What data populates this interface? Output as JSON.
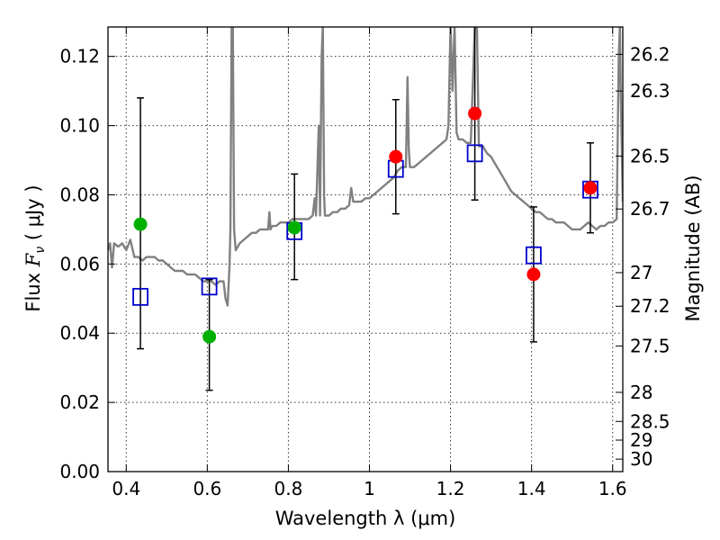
{
  "chart_data": {
    "type": "scatter",
    "xlabel": "Wavelength  λ (μm)",
    "ylabel": "Flux  F_ν  ( μJy )",
    "ylabel_parts": {
      "prefix": "Flux  ",
      "symbol": "F",
      "subscript": "ν",
      "suffix": "  ( μJy )"
    },
    "y2label": "Magnitude (AB)",
    "xlim": [
      0.355,
      1.625
    ],
    "ylim": [
      0.0,
      0.1285
    ],
    "x_ticks": [
      0.4,
      0.6,
      0.8,
      1.0,
      1.2,
      1.4,
      1.6
    ],
    "x_tick_labels": [
      "0.4",
      "0.6",
      "0.8",
      "1",
      "1.2",
      "1.4",
      "1.6"
    ],
    "y_ticks": [
      0.0,
      0.02,
      0.04,
      0.06,
      0.08,
      0.1,
      0.12
    ],
    "y_tick_labels": [
      "0.00",
      "0.02",
      "0.04",
      "0.06",
      "0.08",
      "0.10",
      "0.12"
    ],
    "right_ticks": [
      {
        "label": "26.2",
        "flux": 0.1206
      },
      {
        "label": "26.3",
        "flux": 0.11
      },
      {
        "label": "26.5",
        "flux": 0.0912
      },
      {
        "label": "26.7",
        "flux": 0.0759
      },
      {
        "label": "27",
        "flux": 0.0575
      },
      {
        "label": "27.2",
        "flux": 0.0478
      },
      {
        "label": "27.5",
        "flux": 0.0363
      },
      {
        "label": "28",
        "flux": 0.0229
      },
      {
        "label": "28.5",
        "flux": 0.0145
      },
      {
        "label": "29",
        "flux": 0.0091
      },
      {
        "label": "30",
        "flux": 0.0036
      }
    ],
    "grid": true,
    "series": [
      {
        "name": "model spectrum",
        "type": "line",
        "color": "#808080",
        "points": [
          [
            0.355,
            0.064
          ],
          [
            0.36,
            0.066
          ],
          [
            0.365,
            0.059
          ],
          [
            0.37,
            0.066
          ],
          [
            0.38,
            0.065
          ],
          [
            0.39,
            0.066
          ],
          [
            0.4,
            0.064
          ],
          [
            0.41,
            0.067
          ],
          [
            0.42,
            0.062
          ],
          [
            0.43,
            0.062
          ],
          [
            0.44,
            0.061
          ],
          [
            0.45,
            0.062
          ],
          [
            0.46,
            0.062
          ],
          [
            0.47,
            0.062
          ],
          [
            0.48,
            0.061
          ],
          [
            0.49,
            0.061
          ],
          [
            0.5,
            0.06
          ],
          [
            0.51,
            0.059
          ],
          [
            0.52,
            0.058
          ],
          [
            0.53,
            0.058
          ],
          [
            0.54,
            0.058
          ],
          [
            0.55,
            0.057
          ],
          [
            0.56,
            0.057
          ],
          [
            0.57,
            0.057
          ],
          [
            0.58,
            0.056
          ],
          [
            0.59,
            0.055
          ],
          [
            0.6,
            0.055
          ],
          [
            0.61,
            0.055
          ],
          [
            0.62,
            0.054
          ],
          [
            0.63,
            0.055
          ],
          [
            0.64,
            0.055
          ],
          [
            0.645,
            0.05
          ],
          [
            0.65,
            0.048
          ],
          [
            0.655,
            0.06
          ],
          [
            0.657,
            0.07
          ],
          [
            0.66,
            0.129
          ],
          [
            0.663,
            0.129
          ],
          [
            0.666,
            0.07
          ],
          [
            0.67,
            0.064
          ],
          [
            0.68,
            0.066
          ],
          [
            0.69,
            0.067
          ],
          [
            0.7,
            0.068
          ],
          [
            0.71,
            0.069
          ],
          [
            0.72,
            0.069
          ],
          [
            0.73,
            0.07
          ],
          [
            0.74,
            0.07
          ],
          [
            0.75,
            0.07
          ],
          [
            0.753,
            0.075
          ],
          [
            0.756,
            0.07
          ],
          [
            0.76,
            0.071
          ],
          [
            0.77,
            0.071
          ],
          [
            0.78,
            0.072
          ],
          [
            0.79,
            0.072
          ],
          [
            0.8,
            0.072
          ],
          [
            0.81,
            0.073
          ],
          [
            0.82,
            0.073
          ],
          [
            0.83,
            0.073
          ],
          [
            0.84,
            0.073
          ],
          [
            0.85,
            0.073
          ],
          [
            0.86,
            0.074
          ],
          [
            0.865,
            0.079
          ],
          [
            0.868,
            0.074
          ],
          [
            0.875,
            0.1
          ],
          [
            0.878,
            0.074
          ],
          [
            0.882,
            0.12
          ],
          [
            0.885,
            0.129
          ],
          [
            0.888,
            0.08
          ],
          [
            0.89,
            0.074
          ],
          [
            0.9,
            0.074
          ],
          [
            0.91,
            0.075
          ],
          [
            0.92,
            0.075
          ],
          [
            0.93,
            0.076
          ],
          [
            0.94,
            0.076
          ],
          [
            0.95,
            0.077
          ],
          [
            0.955,
            0.082
          ],
          [
            0.96,
            0.078
          ],
          [
            0.97,
            0.078
          ],
          [
            0.98,
            0.078
          ],
          [
            0.99,
            0.079
          ],
          [
            1.0,
            0.079
          ],
          [
            1.01,
            0.08
          ],
          [
            1.02,
            0.081
          ],
          [
            1.03,
            0.082
          ],
          [
            1.04,
            0.083
          ],
          [
            1.05,
            0.084
          ],
          [
            1.06,
            0.085
          ],
          [
            1.07,
            0.087
          ],
          [
            1.08,
            0.088
          ],
          [
            1.09,
            0.088
          ],
          [
            1.094,
            0.114
          ],
          [
            1.097,
            0.093
          ],
          [
            1.1,
            0.088
          ],
          [
            1.11,
            0.088
          ],
          [
            1.12,
            0.089
          ],
          [
            1.13,
            0.09
          ],
          [
            1.14,
            0.091
          ],
          [
            1.15,
            0.092
          ],
          [
            1.16,
            0.093
          ],
          [
            1.17,
            0.094
          ],
          [
            1.18,
            0.095
          ],
          [
            1.19,
            0.096
          ],
          [
            1.195,
            0.1
          ],
          [
            1.2,
            0.129
          ],
          [
            1.205,
            0.11
          ],
          [
            1.21,
            0.129
          ],
          [
            1.215,
            0.098
          ],
          [
            1.22,
            0.096
          ],
          [
            1.23,
            0.096
          ],
          [
            1.24,
            0.095
          ],
          [
            1.25,
            0.095
          ],
          [
            1.26,
            0.129
          ],
          [
            1.265,
            0.129
          ],
          [
            1.27,
            0.094
          ],
          [
            1.28,
            0.094
          ],
          [
            1.29,
            0.092
          ],
          [
            1.3,
            0.091
          ],
          [
            1.31,
            0.089
          ],
          [
            1.32,
            0.087
          ],
          [
            1.33,
            0.085
          ],
          [
            1.34,
            0.083
          ],
          [
            1.35,
            0.081
          ],
          [
            1.36,
            0.08
          ],
          [
            1.37,
            0.079
          ],
          [
            1.38,
            0.078
          ],
          [
            1.39,
            0.077
          ],
          [
            1.4,
            0.076
          ],
          [
            1.41,
            0.075
          ],
          [
            1.42,
            0.075
          ],
          [
            1.43,
            0.074
          ],
          [
            1.44,
            0.073
          ],
          [
            1.45,
            0.073
          ],
          [
            1.46,
            0.072
          ],
          [
            1.47,
            0.072
          ],
          [
            1.48,
            0.072
          ],
          [
            1.49,
            0.071
          ],
          [
            1.5,
            0.07
          ],
          [
            1.51,
            0.07
          ],
          [
            1.52,
            0.07
          ],
          [
            1.53,
            0.071
          ],
          [
            1.54,
            0.072
          ],
          [
            1.55,
            0.071
          ],
          [
            1.56,
            0.07
          ],
          [
            1.57,
            0.071
          ],
          [
            1.58,
            0.071
          ],
          [
            1.59,
            0.072
          ],
          [
            1.6,
            0.072
          ],
          [
            1.61,
            0.073
          ],
          [
            1.615,
            0.12
          ],
          [
            1.618,
            0.129
          ],
          [
            1.62,
            0.11
          ],
          [
            1.625,
            0.078
          ]
        ]
      },
      {
        "name": "model photometry",
        "marker": "open-square",
        "color": "#0000cc",
        "x": [
          0.435,
          0.605,
          0.815,
          1.065,
          1.26,
          1.405,
          1.545
        ],
        "y": [
          0.0505,
          0.0535,
          0.0695,
          0.0875,
          0.092,
          0.0625,
          0.0815
        ]
      },
      {
        "name": "observed detections (green)",
        "marker": "filled-circle",
        "color": "#00b000",
        "x": [
          0.435,
          0.605,
          0.815
        ],
        "y": [
          0.0715,
          0.039,
          0.0705
        ]
      },
      {
        "name": "observed detections (red)",
        "marker": "filled-circle",
        "color": "#ff0000",
        "x": [
          1.065,
          1.26,
          1.405,
          1.545
        ],
        "y": [
          0.091,
          0.1035,
          0.057,
          0.082
        ]
      }
    ],
    "error_bars": {
      "color": "#000000",
      "items": [
        {
          "x": 0.435,
          "low": 0.0355,
          "high": 0.108
        },
        {
          "x": 0.605,
          "low": 0.0235,
          "high": 0.0555
        },
        {
          "x": 0.815,
          "low": 0.0555,
          "high": 0.086
        },
        {
          "x": 1.065,
          "low": 0.0745,
          "high": 0.1075
        },
        {
          "x": 1.26,
          "low": 0.0785,
          "high": 0.1285
        },
        {
          "x": 1.405,
          "low": 0.0375,
          "high": 0.0765
        },
        {
          "x": 1.545,
          "low": 0.069,
          "high": 0.095
        }
      ]
    }
  }
}
